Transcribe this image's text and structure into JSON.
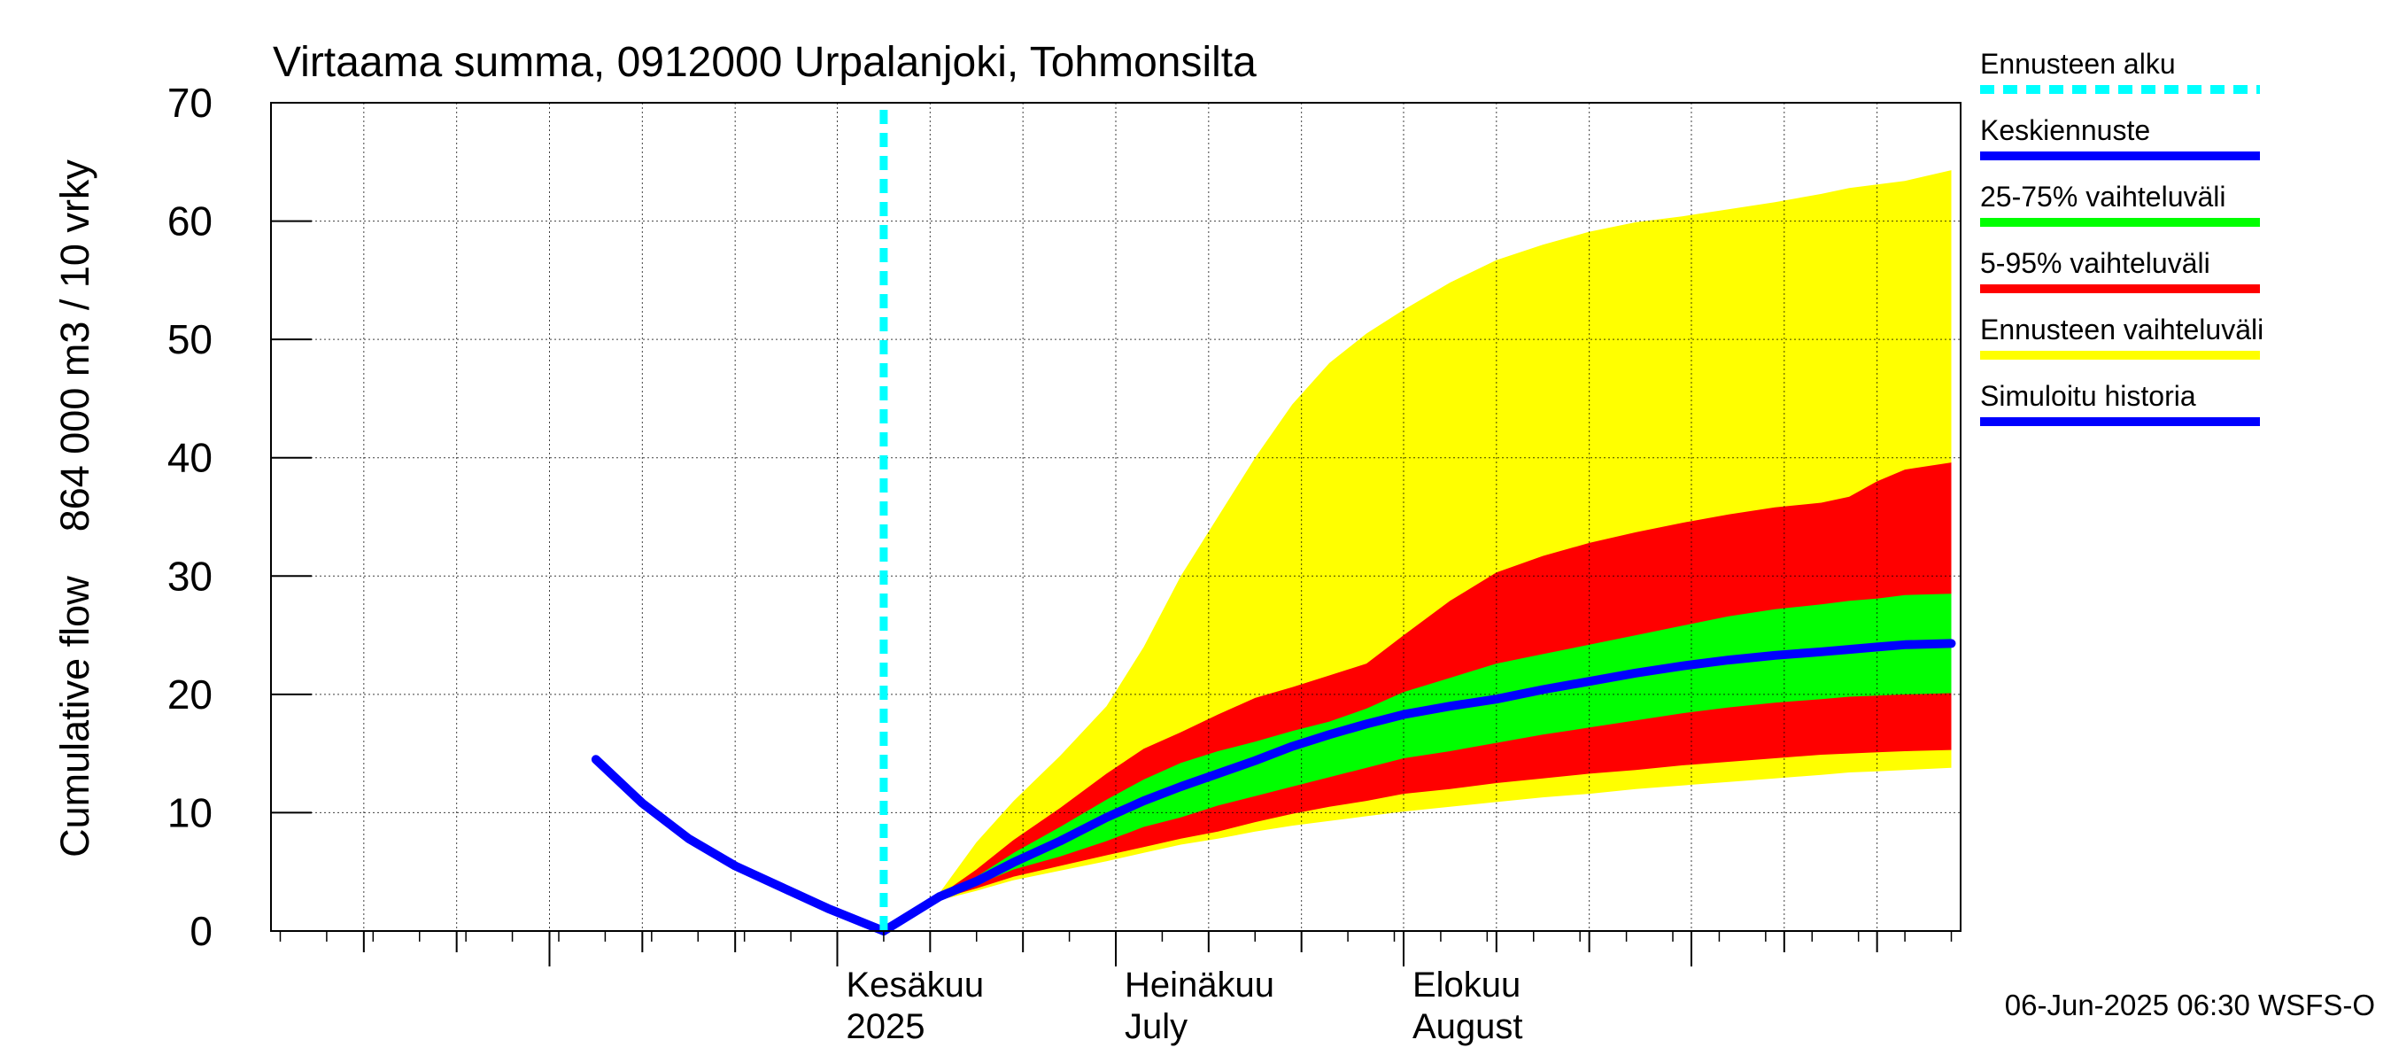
{
  "chart_data": {
    "type": "area",
    "title": "Virtaama summa, 0912000 Urpalanjoki, Tohmonsilta",
    "ylabel": "Cumulative flow    864 000 m3 / 10 vrky",
    "ylim": [
      0,
      70
    ],
    "y_ticks": [
      0,
      10,
      20,
      30,
      40,
      50,
      60,
      70
    ],
    "xlim": [
      "2025-04-01",
      "2025-09-30"
    ],
    "grid": true,
    "month_labels": [
      {
        "date": "2025-06-01",
        "line1": "Kesäkuu",
        "line2": "2025"
      },
      {
        "date": "2025-07-01",
        "line1": "Heinäkuu",
        "line2": "July"
      },
      {
        "date": "2025-08-01",
        "line1": "Elokuu",
        "line2": "August"
      }
    ],
    "forecast_start": "2025-06-06",
    "legend": {
      "placement": "right",
      "items": [
        {
          "label": "Ennusteen alku",
          "color": "#00ffff",
          "style": "dashed"
        },
        {
          "label": "Keskiennuste",
          "color": "#0000ff",
          "style": "solid"
        },
        {
          "label": "25-75% vaihteluväli",
          "color": "#00ff00",
          "style": "solid"
        },
        {
          "label": "5-95% vaihteluväli",
          "color": "#ff0000",
          "style": "solid"
        },
        {
          "label": "Ennusteen vaihteluväli",
          "color": "#ffff00",
          "style": "solid"
        },
        {
          "label": "Simuloitu historia",
          "color": "#0000ff",
          "style": "solid"
        }
      ]
    },
    "footer": "06-Jun-2025 06:30 WSFS-O",
    "colors": {
      "forecast_range": "#ffff00",
      "range_5_95": "#ff0000",
      "range_25_75": "#00ff00",
      "median": "#0000ff",
      "history": "#0000ff",
      "forecast_start": "#00ffff"
    },
    "series": {
      "history": {
        "x": [
          "2025-05-06",
          "2025-05-11",
          "2025-05-16",
          "2025-05-21",
          "2025-05-26",
          "2025-05-31",
          "2025-06-06"
        ],
        "y": [
          14.5,
          10.8,
          7.8,
          5.5,
          3.7,
          1.9,
          0.0
        ]
      },
      "forecast": {
        "x": [
          "2025-06-06",
          "2025-06-12",
          "2025-06-16",
          "2025-06-20",
          "2025-06-25",
          "2025-06-30",
          "2025-07-04",
          "2025-07-08",
          "2025-07-12",
          "2025-07-16",
          "2025-07-20",
          "2025-07-24",
          "2025-07-28",
          "2025-08-01",
          "2025-08-06",
          "2025-08-11",
          "2025-08-16",
          "2025-08-21",
          "2025-08-26",
          "2025-08-31",
          "2025-09-05",
          "2025-09-10",
          "2025-09-15",
          "2025-09-18",
          "2025-09-21",
          "2025-09-24",
          "2025-09-29"
        ],
        "ens_max": [
          0,
          3.2,
          7.5,
          11.0,
          14.8,
          19.0,
          24.0,
          30.0,
          35.0,
          40.0,
          44.5,
          48.0,
          50.5,
          52.5,
          54.8,
          56.7,
          58.0,
          59.1,
          59.9,
          60.4,
          61.0,
          61.6,
          62.3,
          62.8,
          63.1,
          63.4,
          64.3
        ],
        "p95": [
          0,
          3.0,
          5.2,
          7.7,
          10.4,
          13.3,
          15.4,
          16.8,
          18.3,
          19.7,
          20.6,
          21.6,
          22.6,
          25.0,
          27.9,
          30.3,
          31.7,
          32.8,
          33.7,
          34.5,
          35.2,
          35.8,
          36.2,
          36.7,
          38.0,
          39.0,
          39.6
        ],
        "p75": [
          0,
          2.9,
          4.6,
          6.6,
          8.8,
          11.1,
          12.8,
          14.2,
          15.2,
          16.0,
          16.9,
          17.7,
          18.8,
          20.2,
          21.4,
          22.6,
          23.4,
          24.2,
          25.0,
          25.8,
          26.6,
          27.2,
          27.6,
          27.9,
          28.1,
          28.4,
          28.5
        ],
        "median": [
          0,
          2.9,
          4.2,
          5.8,
          7.6,
          9.6,
          11.0,
          12.2,
          13.3,
          14.4,
          15.6,
          16.6,
          17.5,
          18.3,
          19.0,
          19.6,
          20.4,
          21.1,
          21.8,
          22.4,
          22.9,
          23.3,
          23.6,
          23.8,
          24.0,
          24.2,
          24.3
        ],
        "p25": [
          0,
          2.8,
          3.9,
          5.2,
          6.3,
          7.6,
          8.8,
          9.6,
          10.6,
          11.4,
          12.2,
          13.0,
          13.8,
          14.6,
          15.2,
          15.9,
          16.6,
          17.2,
          17.8,
          18.4,
          18.9,
          19.3,
          19.6,
          19.8,
          19.9,
          20.0,
          20.1
        ],
        "p5": [
          0,
          2.7,
          3.6,
          4.6,
          5.5,
          6.4,
          7.1,
          7.8,
          8.4,
          9.2,
          9.9,
          10.5,
          11.0,
          11.6,
          12.0,
          12.5,
          12.9,
          13.3,
          13.6,
          14.0,
          14.3,
          14.6,
          14.9,
          15.0,
          15.1,
          15.2,
          15.3
        ],
        "ens_min": [
          0,
          2.6,
          3.4,
          4.3,
          5.1,
          5.9,
          6.6,
          7.3,
          7.8,
          8.4,
          8.9,
          9.3,
          9.7,
          10.1,
          10.5,
          10.9,
          11.3,
          11.6,
          12.0,
          12.3,
          12.6,
          12.9,
          13.2,
          13.4,
          13.5,
          13.6,
          13.8
        ]
      }
    }
  }
}
